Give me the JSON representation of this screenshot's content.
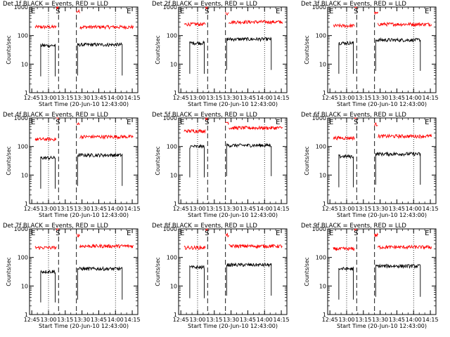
{
  "chart_data": [
    {
      "type": "line",
      "title": "Det 1f BLACK = Events, RED = LLD",
      "xlabel": "Start Time (20-Jun-10 12:43:00)",
      "ylabel": "Counts/sec",
      "y_scale": "log",
      "ylim": [
        1,
        1000
      ],
      "y_ticks": [
        "1",
        "10",
        "100",
        "1000"
      ],
      "x_ticks": [
        "12:45",
        "13:00",
        "13:15",
        "13:30",
        "13:45",
        "14:00",
        "14:15"
      ],
      "markers": [
        "E",
        "S",
        "E"
      ],
      "series": [
        {
          "color": "#ff0000",
          "segments": [
            {
              "x_range": [
                "12:48",
                "13:07"
              ],
              "level": 200
            },
            {
              "x_range": [
                "13:07",
                "13:09"
              ],
              "level": 1000
            },
            {
              "x_range": [
                "13:25",
                "13:28"
              ],
              "level": 700
            },
            {
              "x_range": [
                "13:28",
                "14:16"
              ],
              "level": 200
            }
          ]
        },
        {
          "color": "#000000",
          "segments": [
            {
              "x_range": [
                "12:53",
                "13:06"
              ],
              "level": 45
            },
            {
              "x_range": [
                "13:26",
                "14:06"
              ],
              "level": 48
            }
          ]
        }
      ]
    },
    {
      "type": "line",
      "title": "Det 2f BLACK = Events, RED = LLD",
      "xlabel": "Start Time (20-Jun-10 12:43:00)",
      "ylabel": "Counts/sec",
      "y_scale": "log",
      "ylim": [
        1,
        1000
      ],
      "y_ticks": [
        "1",
        "10",
        "100",
        "1000"
      ],
      "x_ticks": [
        "12:45",
        "13:00",
        "13:15",
        "13:30",
        "13:45",
        "14:00",
        "14:15"
      ],
      "markers": [
        "E",
        "S",
        "E"
      ],
      "series": [
        {
          "color": "#ff0000",
          "segments": [
            {
              "x_range": [
                "12:48",
                "13:07"
              ],
              "level": 250
            },
            {
              "x_range": [
                "13:07",
                "13:09"
              ],
              "level": 1000
            },
            {
              "x_range": [
                "13:25",
                "13:28"
              ],
              "level": 600
            },
            {
              "x_range": [
                "13:28",
                "14:16"
              ],
              "level": 300
            }
          ]
        },
        {
          "color": "#000000",
          "segments": [
            {
              "x_range": [
                "12:53",
                "13:06"
              ],
              "level": 55
            },
            {
              "x_range": [
                "13:26",
                "14:06"
              ],
              "level": 75
            }
          ]
        }
      ]
    },
    {
      "type": "line",
      "title": "Det 3f BLACK = Events, RED = LLD",
      "xlabel": "Start Time (20-Jun-10 12:43:00)",
      "ylabel": "Counts/sec",
      "y_scale": "log",
      "ylim": [
        1,
        1000
      ],
      "y_ticks": [
        "1",
        "10",
        "100",
        "1000"
      ],
      "x_ticks": [
        "12:45",
        "13:00",
        "13:15",
        "13:30",
        "13:45",
        "14:00",
        "14:15"
      ],
      "markers": [
        "E",
        "S",
        "E"
      ],
      "series": [
        {
          "color": "#ff0000",
          "segments": [
            {
              "x_range": [
                "12:48",
                "13:07"
              ],
              "level": 220
            },
            {
              "x_range": [
                "13:07",
                "13:09"
              ],
              "level": 1000
            },
            {
              "x_range": [
                "13:25",
                "13:28"
              ],
              "level": 600
            },
            {
              "x_range": [
                "13:28",
                "14:16"
              ],
              "level": 250
            }
          ]
        },
        {
          "color": "#000000",
          "segments": [
            {
              "x_range": [
                "12:53",
                "13:06"
              ],
              "level": 55
            },
            {
              "x_range": [
                "13:26",
                "14:06"
              ],
              "level": 70
            }
          ]
        }
      ]
    },
    {
      "type": "line",
      "title": "Det 4f BLACK = Events, RED = LLD",
      "xlabel": "Start Time (20-Jun-10 12:43:00)",
      "ylabel": "Counts/sec",
      "y_scale": "log",
      "ylim": [
        1,
        1000
      ],
      "y_ticks": [
        "1",
        "10",
        "100",
        "1000"
      ],
      "x_ticks": [
        "12:45",
        "13:00",
        "13:15",
        "13:30",
        "13:45",
        "14:00",
        "14:15"
      ],
      "markers": [
        "E",
        "S",
        "E"
      ],
      "series": [
        {
          "color": "#ff0000",
          "segments": [
            {
              "x_range": [
                "12:48",
                "13:07"
              ],
              "level": 180
            },
            {
              "x_range": [
                "13:07",
                "13:09"
              ],
              "level": 1000
            },
            {
              "x_range": [
                "13:25",
                "13:28"
              ],
              "level": 600
            },
            {
              "x_range": [
                "13:28",
                "14:16"
              ],
              "level": 220
            }
          ]
        },
        {
          "color": "#000000",
          "segments": [
            {
              "x_range": [
                "12:53",
                "13:06"
              ],
              "level": 40
            },
            {
              "x_range": [
                "13:26",
                "14:06"
              ],
              "level": 50
            }
          ]
        }
      ]
    },
    {
      "type": "line",
      "title": "Det 5f BLACK = Events, RED = LLD",
      "xlabel": "Start Time (20-Jun-10 12:43:00)",
      "ylabel": "Counts/sec",
      "y_scale": "log",
      "ylim": [
        1,
        1000
      ],
      "y_ticks": [
        "1",
        "10",
        "100",
        "1000"
      ],
      "x_ticks": [
        "12:45",
        "13:00",
        "13:15",
        "13:30",
        "13:45",
        "14:00",
        "14:15"
      ],
      "markers": [
        "E",
        "S",
        "E"
      ],
      "series": [
        {
          "color": "#ff0000",
          "segments": [
            {
              "x_range": [
                "12:48",
                "13:07"
              ],
              "level": 350
            },
            {
              "x_range": [
                "13:07",
                "13:09"
              ],
              "level": 1000
            },
            {
              "x_range": [
                "13:25",
                "13:28"
              ],
              "level": 700
            },
            {
              "x_range": [
                "13:28",
                "14:16"
              ],
              "level": 450
            }
          ]
        },
        {
          "color": "#000000",
          "segments": [
            {
              "x_range": [
                "12:53",
                "13:06"
              ],
              "level": 100
            },
            {
              "x_range": [
                "13:26",
                "14:06"
              ],
              "level": 110
            }
          ]
        }
      ]
    },
    {
      "type": "line",
      "title": "Det 6f BLACK = Events, RED = LLD",
      "xlabel": "Start Time (20-Jun-10 12:43:00)",
      "ylabel": "Counts/sec",
      "y_scale": "log",
      "ylim": [
        1,
        1000
      ],
      "y_ticks": [
        "1",
        "10",
        "100",
        "1000"
      ],
      "x_ticks": [
        "12:45",
        "13:00",
        "13:15",
        "13:30",
        "13:45",
        "14:00",
        "14:15"
      ],
      "markers": [
        "E",
        "S",
        "E"
      ],
      "series": [
        {
          "color": "#ff0000",
          "segments": [
            {
              "x_range": [
                "12:48",
                "13:07"
              ],
              "level": 200
            },
            {
              "x_range": [
                "13:07",
                "13:09"
              ],
              "level": 1000
            },
            {
              "x_range": [
                "13:25",
                "13:28"
              ],
              "level": 600
            },
            {
              "x_range": [
                "13:28",
                "14:16"
              ],
              "level": 230
            }
          ]
        },
        {
          "color": "#000000",
          "segments": [
            {
              "x_range": [
                "12:53",
                "13:06"
              ],
              "level": 45
            },
            {
              "x_range": [
                "13:26",
                "14:06"
              ],
              "level": 55
            }
          ]
        }
      ]
    },
    {
      "type": "line",
      "title": "Det 7f BLACK = Events, RED = LLD",
      "xlabel": "Start Time (20-Jun-10 12:43:00)",
      "ylabel": "Counts/sec",
      "y_scale": "log",
      "ylim": [
        1,
        1000
      ],
      "y_ticks": [
        "1",
        "10",
        "100",
        "1000"
      ],
      "x_ticks": [
        "12:45",
        "13:00",
        "13:15",
        "13:30",
        "13:45",
        "14:00",
        "14:15"
      ],
      "markers": [
        "E",
        "S",
        "E"
      ],
      "series": [
        {
          "color": "#ff0000",
          "segments": [
            {
              "x_range": [
                "12:48",
                "13:07"
              ],
              "level": 220
            },
            {
              "x_range": [
                "13:07",
                "13:09"
              ],
              "level": 1000
            },
            {
              "x_range": [
                "13:25",
                "13:28"
              ],
              "level": 600
            },
            {
              "x_range": [
                "13:28",
                "14:16"
              ],
              "level": 250
            }
          ]
        },
        {
          "color": "#000000",
          "segments": [
            {
              "x_range": [
                "12:53",
                "13:06"
              ],
              "level": 32
            },
            {
              "x_range": [
                "13:26",
                "14:06"
              ],
              "level": 40
            }
          ]
        }
      ]
    },
    {
      "type": "line",
      "title": "Det 8f BLACK = Events, RED = LLD",
      "xlabel": "Start Time (20-Jun-10 12:43:00)",
      "ylabel": "Counts/sec",
      "y_scale": "log",
      "ylim": [
        1,
        1000
      ],
      "y_ticks": [
        "1",
        "10",
        "100",
        "1000"
      ],
      "x_ticks": [
        "12:45",
        "13:00",
        "13:15",
        "13:30",
        "13:45",
        "14:00",
        "14:15"
      ],
      "markers": [
        "E",
        "S",
        "E"
      ],
      "series": [
        {
          "color": "#ff0000",
          "segments": [
            {
              "x_range": [
                "12:48",
                "13:07"
              ],
              "level": 220
            },
            {
              "x_range": [
                "13:07",
                "13:09"
              ],
              "level": 1000
            },
            {
              "x_range": [
                "13:25",
                "13:28"
              ],
              "level": 600
            },
            {
              "x_range": [
                "13:28",
                "14:16"
              ],
              "level": 250
            }
          ]
        },
        {
          "color": "#000000",
          "segments": [
            {
              "x_range": [
                "12:53",
                "13:06"
              ],
              "level": 45
            },
            {
              "x_range": [
                "13:26",
                "14:06"
              ],
              "level": 55
            }
          ]
        }
      ]
    },
    {
      "type": "line",
      "title": "Det 9f BLACK = Events, RED = LLD",
      "xlabel": "Start Time (20-Jun-10 12:43:00)",
      "ylabel": "Counts/sec",
      "y_scale": "log",
      "ylim": [
        1,
        1000
      ],
      "y_ticks": [
        "1",
        "10",
        "100",
        "1000"
      ],
      "x_ticks": [
        "12:45",
        "13:00",
        "13:15",
        "13:30",
        "13:45",
        "14:00",
        "14:15"
      ],
      "markers": [
        "E",
        "S",
        "E"
      ],
      "series": [
        {
          "color": "#ff0000",
          "segments": [
            {
              "x_range": [
                "12:48",
                "13:07"
              ],
              "level": 200
            },
            {
              "x_range": [
                "13:07",
                "13:09"
              ],
              "level": 1000
            },
            {
              "x_range": [
                "13:25",
                "13:28"
              ],
              "level": 600
            },
            {
              "x_range": [
                "13:28",
                "14:16"
              ],
              "level": 230
            }
          ]
        },
        {
          "color": "#000000",
          "segments": [
            {
              "x_range": [
                "12:53",
                "13:06"
              ],
              "level": 40
            },
            {
              "x_range": [
                "13:26",
                "14:06"
              ],
              "level": 50
            }
          ]
        }
      ]
    }
  ]
}
